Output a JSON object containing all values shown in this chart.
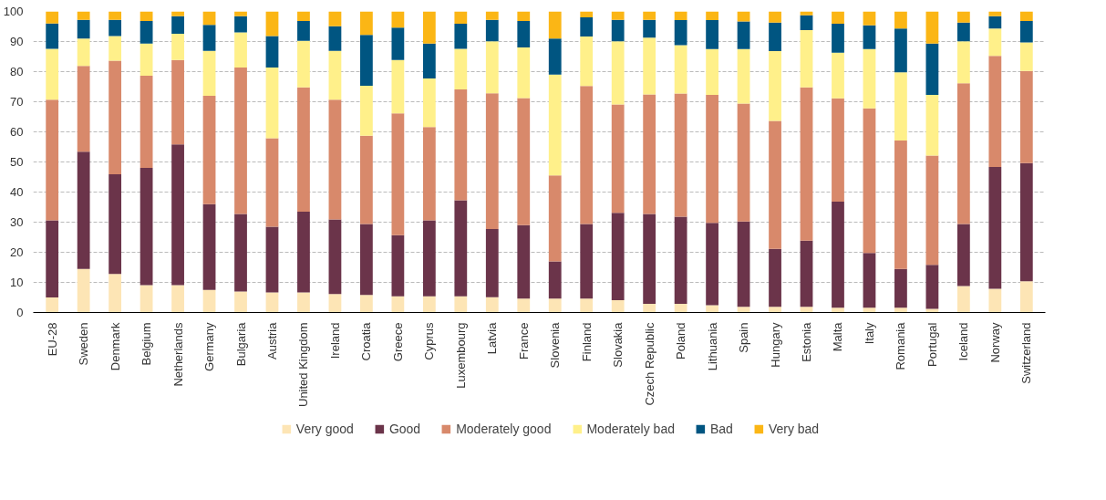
{
  "chart_data": {
    "type": "bar",
    "stacked": true,
    "categories": [
      "EU-28",
      "Sweden",
      "Denmark",
      "Belgium",
      "Netherlands",
      "Germany",
      "Bulgaria",
      "Austria",
      "United Kingdom",
      "Ireland",
      "Croatia",
      "Greece",
      "Cyprus",
      "Luxembourg",
      "Latvia",
      "France",
      "Slovenia",
      "Finland",
      "Slovakia",
      "Czech Republic",
      "Poland",
      "Lithuania",
      "Spain",
      "Hungary",
      "Estonia",
      "Malta",
      "Italy",
      "Romania",
      "Portugal",
      "Iceland",
      "Norway",
      "Switzerland"
    ],
    "series": [
      {
        "name": "Very good",
        "color": "#fde5b5",
        "values": [
          5.0,
          14.5,
          12.8,
          9.1,
          9.1,
          7.5,
          7.0,
          6.7,
          6.7,
          6.1,
          5.8,
          5.4,
          5.4,
          5.4,
          5.1,
          4.6,
          4.6,
          4.6,
          4.1,
          2.9,
          2.9,
          2.4,
          1.9,
          1.9,
          1.9,
          1.6,
          1.6,
          1.6,
          1.2,
          8.8,
          7.9,
          10.4
        ]
      },
      {
        "name": "Good",
        "color": "#6b344a",
        "values": [
          25.6,
          38.9,
          33.1,
          38.9,
          46.7,
          28.5,
          25.7,
          21.8,
          26.8,
          24.8,
          23.6,
          20.3,
          25.2,
          31.9,
          22.6,
          24.4,
          12.4,
          24.8,
          29.0,
          29.8,
          28.9,
          27.4,
          28.3,
          19.2,
          22.0,
          35.2,
          18.2,
          12.9,
          14.6,
          20.6,
          40.4,
          39.2
        ]
      },
      {
        "name": "Moderately good",
        "color": "#d8896b",
        "values": [
          40.1,
          28.5,
          37.7,
          30.6,
          28.1,
          36.0,
          48.7,
          29.4,
          41.3,
          39.8,
          29.3,
          40.4,
          31.0,
          36.8,
          45.1,
          42.2,
          28.5,
          45.8,
          36.0,
          39.7,
          40.9,
          42.5,
          39.2,
          42.5,
          50.9,
          34.3,
          48.0,
          42.6,
          36.3,
          46.7,
          36.9,
          30.6
        ]
      },
      {
        "name": "Moderately bad",
        "color": "#fff08a",
        "values": [
          16.9,
          9.1,
          8.2,
          10.7,
          8.7,
          14.9,
          11.6,
          23.5,
          15.4,
          16.2,
          16.6,
          17.8,
          16.1,
          13.5,
          17.3,
          16.8,
          33.5,
          16.5,
          21.0,
          18.9,
          16.1,
          15.2,
          18.1,
          23.2,
          19.0,
          15.2,
          19.7,
          22.7,
          20.2,
          14.0,
          9.1,
          9.5
        ]
      },
      {
        "name": "Bad",
        "color": "#005581",
        "values": [
          8.4,
          6.2,
          5.4,
          7.5,
          5.8,
          8.6,
          5.4,
          10.4,
          6.6,
          8.2,
          16.9,
          10.7,
          11.6,
          8.3,
          7.1,
          8.8,
          12.0,
          6.3,
          7.1,
          5.9,
          8.3,
          9.6,
          9.2,
          9.5,
          4.9,
          9.6,
          7.9,
          14.5,
          17.0,
          6.2,
          4.1,
          7.1
        ]
      },
      {
        "name": "Very bad",
        "color": "#fbb615",
        "values": [
          4.0,
          2.8,
          2.8,
          3.2,
          1.6,
          4.5,
          1.6,
          8.2,
          3.2,
          4.9,
          7.8,
          5.4,
          10.7,
          4.1,
          2.8,
          3.2,
          9.0,
          2.0,
          2.8,
          2.8,
          2.9,
          2.9,
          3.3,
          3.7,
          1.3,
          4.1,
          4.6,
          5.7,
          10.7,
          3.7,
          1.6,
          3.2
        ]
      }
    ],
    "ylim": [
      0,
      100
    ],
    "yticks": [
      0,
      10,
      20,
      30,
      40,
      50,
      60,
      70,
      80,
      90,
      100
    ],
    "grid": "y",
    "legend": "bottom"
  }
}
